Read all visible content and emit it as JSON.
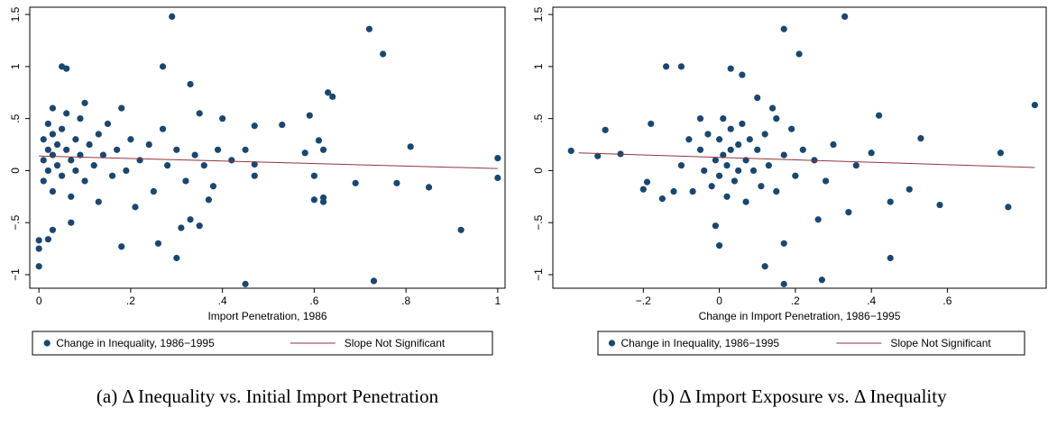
{
  "chart_data": [
    {
      "type": "scatter",
      "caption": "(a) Δ Inequality vs. Initial Import Penetration",
      "x_label": "Import Penetration, 1986",
      "xlim": [
        -0.02,
        1.016
      ],
      "ylim": [
        -1.13,
        1.57
      ],
      "xticks": [
        0,
        {
          "value": 0.2,
          "label": ".2"
        },
        {
          "value": 0.4,
          "label": ".4"
        },
        {
          "value": 0.6,
          "label": ".6"
        },
        {
          "value": 0.8,
          "label": ".8"
        },
        1
      ],
      "yticks": [
        {
          "value": -1,
          "label": "−1"
        },
        {
          "value": -0.5,
          "label": "−.5"
        },
        0,
        {
          "value": 0.5,
          "label": ".5"
        },
        1,
        1.5
      ],
      "series": [
        {
          "name": "Change in Inequality, 1986−1995",
          "color": "#1a476f",
          "mode": "markers",
          "x": [
            0.29,
            0.72,
            0.75,
            0.27,
            0.05,
            0.06,
            0.33,
            0.63,
            0.64,
            0.59,
            0.53,
            0.47,
            0.81,
            0.61,
            0.62,
            0.58,
            0.47,
            0.47,
            0.6,
            0.69,
            0.78,
            0.85,
            0.6,
            0.62,
            0.62,
            0.92,
            1.0,
            1.0,
            0.73,
            0.45,
            0.3,
            0.26,
            0.18,
            0.0,
            0.0,
            0.0,
            0.02,
            0.03,
            0.07,
            0.33,
            0.35,
            0.31,
            0.37,
            0.4,
            0.35,
            0.39,
            0.42,
            0.45,
            0.01,
            0.01,
            0.01,
            0.02,
            0.02,
            0.02,
            0.03,
            0.03,
            0.03,
            0.03,
            0.04,
            0.04,
            0.05,
            0.05,
            0.06,
            0.06,
            0.07,
            0.07,
            0.08,
            0.08,
            0.09,
            0.09,
            0.1,
            0.1,
            0.11,
            0.12,
            0.13,
            0.13,
            0.14,
            0.15,
            0.16,
            0.17,
            0.18,
            0.19,
            0.2,
            0.21,
            0.22,
            0.24,
            0.25,
            0.27,
            0.28,
            0.3,
            0.32,
            0.34,
            0.36,
            0.38
          ],
          "values": [
            1.48,
            1.36,
            1.12,
            1.0,
            1.0,
            0.98,
            0.83,
            0.75,
            0.71,
            0.53,
            0.44,
            0.43,
            0.23,
            0.29,
            0.2,
            0.17,
            0.06,
            -0.05,
            -0.05,
            -0.12,
            -0.12,
            -0.16,
            -0.28,
            -0.3,
            -0.26,
            -0.57,
            0.12,
            -0.07,
            -1.06,
            -1.09,
            -0.84,
            -0.7,
            -0.73,
            -0.92,
            -0.75,
            -0.67,
            -0.66,
            -0.57,
            -0.5,
            -0.47,
            -0.53,
            -0.55,
            -0.28,
            0.5,
            0.55,
            0.2,
            0.1,
            0.2,
            0.3,
            0.1,
            -0.1,
            0.45,
            0.2,
            0.0,
            0.6,
            0.35,
            0.15,
            -0.2,
            0.25,
            0.05,
            0.4,
            -0.05,
            0.55,
            0.2,
            0.1,
            -0.25,
            0.3,
            0.0,
            0.5,
            0.15,
            0.65,
            -0.1,
            0.25,
            0.05,
            0.35,
            -0.3,
            0.15,
            0.45,
            -0.05,
            0.2,
            0.6,
            0.0,
            0.3,
            -0.35,
            0.1,
            0.25,
            -0.2,
            0.4,
            0.05,
            0.2,
            -0.1,
            0.15,
            0.05,
            -0.15
          ]
        },
        {
          "name": "Slope Not Significant",
          "color": "#90353b",
          "mode": "line",
          "x": [
            0,
            1
          ],
          "values": [
            0.14,
            0.02
          ]
        }
      ]
    },
    {
      "type": "scatter",
      "caption": "(b) Δ Import Exposure vs. Δ Inequality",
      "x_label": "Change in Import Penetration, 1986−1995",
      "xlim": [
        -0.438,
        0.86
      ],
      "ylim": [
        -1.13,
        1.57
      ],
      "xticks": [
        {
          "value": -0.2,
          "label": "−.2"
        },
        0,
        {
          "value": 0.2,
          "label": ".2"
        },
        {
          "value": 0.4,
          "label": ".4"
        },
        {
          "value": 0.6,
          "label": ".6"
        }
      ],
      "yticks": [
        {
          "value": -1,
          "label": "−1"
        },
        {
          "value": -0.5,
          "label": "−.5"
        },
        0,
        {
          "value": 0.5,
          "label": ".5"
        },
        1,
        1.5
      ],
      "series": [
        {
          "name": "Change in Inequality, 1986−1995",
          "color": "#1a476f",
          "mode": "markers",
          "x": [
            0.33,
            0.17,
            0.21,
            -0.14,
            -0.1,
            0.03,
            0.06,
            0.83,
            0.42,
            0.53,
            0.74,
            0.58,
            0.76,
            0.45,
            0.27,
            0.17,
            0.12,
            0.17,
            0.0,
            -0.01,
            0.26,
            -0.39,
            -0.32,
            -0.3,
            -0.26,
            -0.18,
            -0.2,
            -0.19,
            -0.15,
            -0.12,
            0.45,
            0.5,
            0.4,
            0.34,
            0.1,
            0.15,
            -0.05,
            -0.05,
            -0.04,
            -0.03,
            -0.02,
            -0.01,
            0.0,
            0.0,
            0.01,
            0.01,
            0.02,
            0.02,
            0.03,
            0.03,
            0.04,
            0.05,
            0.05,
            0.06,
            0.07,
            0.07,
            0.08,
            0.09,
            0.1,
            0.11,
            0.12,
            0.13,
            0.14,
            0.15,
            0.17,
            0.19,
            0.2,
            0.22,
            0.25,
            0.28,
            0.3,
            -0.08,
            -0.1,
            -0.07,
            0.36
          ],
          "values": [
            1.48,
            1.36,
            1.12,
            1.0,
            1.0,
            0.98,
            0.92,
            0.63,
            0.53,
            0.31,
            0.17,
            -0.33,
            -0.35,
            -0.84,
            -1.05,
            -1.09,
            -0.92,
            -0.7,
            -0.72,
            -0.53,
            -0.47,
            0.19,
            0.14,
            0.39,
            0.16,
            0.45,
            -0.18,
            -0.11,
            -0.27,
            -0.2,
            -0.3,
            -0.18,
            0.17,
            -0.4,
            0.7,
            0.5,
            0.5,
            0.2,
            0.0,
            0.35,
            -0.15,
            0.1,
            0.3,
            -0.05,
            0.5,
            0.15,
            -0.25,
            0.05,
            0.4,
            0.2,
            -0.1,
            0.25,
            0.0,
            0.45,
            0.1,
            -0.3,
            0.3,
            0.0,
            0.2,
            -0.15,
            0.35,
            0.05,
            0.6,
            -0.2,
            0.15,
            0.4,
            -0.05,
            0.2,
            0.1,
            -0.1,
            0.25,
            0.3,
            0.05,
            -0.2,
            0.05
          ]
        },
        {
          "name": "Slope Not Significant",
          "color": "#90353b",
          "mode": "line",
          "x": [
            -0.37,
            0.83
          ],
          "values": [
            0.17,
            0.03
          ]
        }
      ]
    }
  ]
}
